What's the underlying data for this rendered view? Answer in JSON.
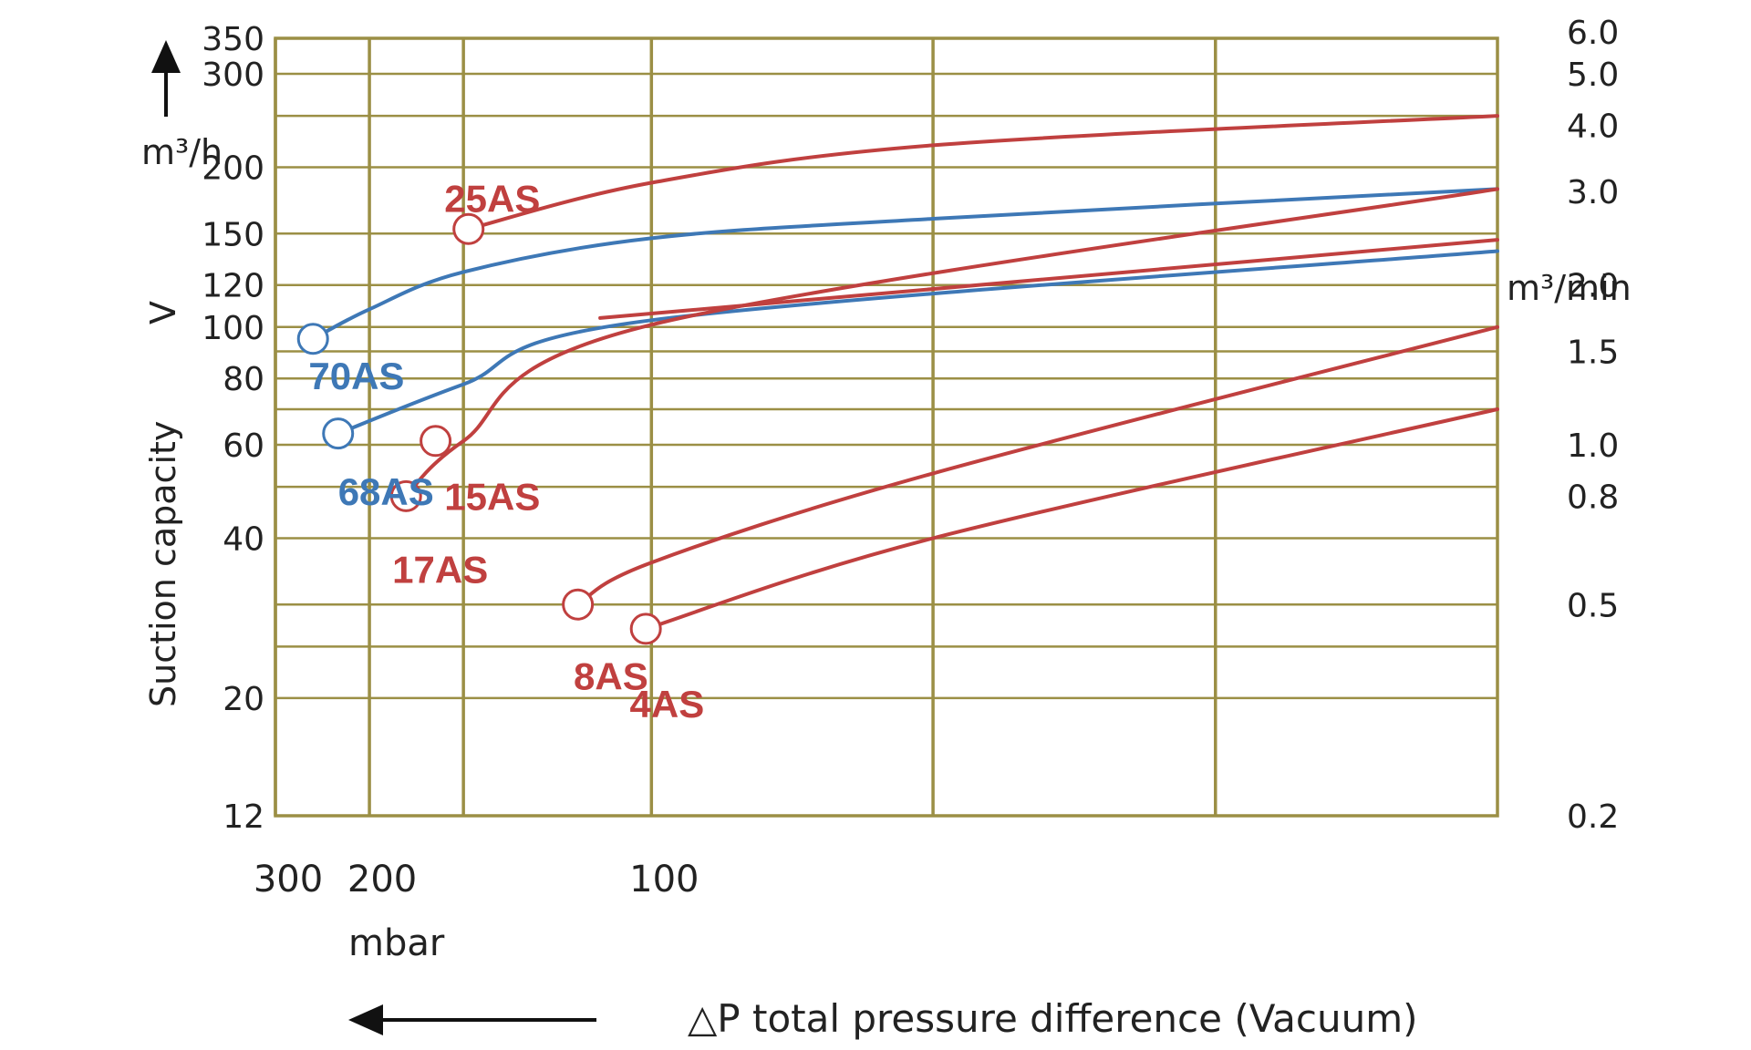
{
  "chart_data": {
    "type": "line",
    "title": "",
    "x_scale": "reciprocal",
    "y_scale": "log",
    "xlim": [
      300,
      40
    ],
    "ylim": [
      12,
      350
    ],
    "grid": true,
    "x_ticks": [
      300,
      200,
      150,
      100,
      66.7,
      50
    ],
    "x_tick_labels": [
      "300",
      "200",
      "100"
    ],
    "x_tick_label_values": [
      300,
      200,
      100
    ],
    "x_unit": "mbar",
    "xlabel": "△P total pressure difference (Vacuum)",
    "y_ticks": [
      12,
      20,
      25,
      30,
      40,
      50,
      60,
      70,
      80,
      90,
      100,
      120,
      150,
      200,
      250,
      300,
      350
    ],
    "y_tick_labels": [
      "12",
      "20",
      "40",
      "60",
      "80",
      "100",
      "120",
      "150",
      "200",
      "300",
      "350"
    ],
    "y_tick_label_values": [
      12,
      20,
      40,
      60,
      80,
      100,
      120,
      150,
      200,
      300,
      350
    ],
    "ylabel": "Suction capacity",
    "ylabel_symbol": "V",
    "y_unit": "m³/h",
    "y2_unit": "m³/min",
    "y2_labels": [
      "6.0",
      "5.0",
      "4.0",
      "3.0",
      "2.0",
      "1.5",
      "1.0",
      "0.8",
      "0.5",
      "0.2"
    ],
    "y2_values": [
      6.0,
      5.0,
      4.0,
      3.0,
      2.0,
      1.5,
      1.0,
      0.8,
      0.5,
      0.2
    ],
    "series": [
      {
        "name": "70AS",
        "color": "#3e78b6",
        "x": [
          250,
          200,
          150,
          100,
          66.7,
          40
        ],
        "y": [
          95,
          108,
          127,
          147,
          160,
          182
        ],
        "label_x": 255,
        "label_y": 81
      },
      {
        "name": "68AS",
        "color": "#3e78b6",
        "x": [
          225,
          150,
          100,
          40
        ],
        "y": [
          63,
          78,
          103,
          139
        ],
        "label_x": 225,
        "label_y": 49
      },
      {
        "name": "25AS",
        "color": "#c0403f",
        "x": [
          148,
          100,
          66.7,
          40
        ],
        "y": [
          153,
          187,
          220,
          250
        ],
        "label_x": 158,
        "label_y": 175
      },
      {
        "name": "17AS",
        "color": "#c0403f",
        "x": [
          177,
          150,
          100,
          40
        ],
        "y": [
          48,
          61,
          101,
          182
        ],
        "label_x": 185,
        "label_y": 35
      },
      {
        "name": "15AS",
        "color": "#c0403f",
        "x": [
          110,
          40
        ],
        "y": [
          104,
          146
        ],
        "label_x": 158,
        "label_y": 48,
        "marker_x": 162,
        "marker_y": 61
      },
      {
        "name": "8AS",
        "color": "#c0403f",
        "x": [
          115,
          100,
          66.7,
          40
        ],
        "y": [
          30,
          36,
          53,
          100
        ],
        "label_x": 116,
        "label_y": 22
      },
      {
        "name": "4AS",
        "color": "#c0403f",
        "x": [
          101,
          66.7,
          40
        ],
        "y": [
          27,
          40,
          70
        ],
        "label_x": 104,
        "label_y": 19.5
      }
    ]
  }
}
